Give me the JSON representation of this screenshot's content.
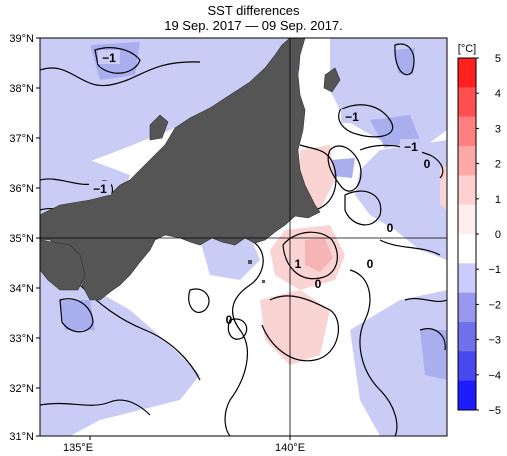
{
  "title": "SST differences",
  "subtitle": "19 Sep. 2017 — 09 Sep. 2017.",
  "colorbar": {
    "unit": "[°C]",
    "ticks": [
      "5",
      "4",
      "3",
      "2",
      "1",
      "0",
      "−1",
      "−2",
      "−3",
      "−4",
      "−5"
    ],
    "colors": [
      "#ff2020",
      "#ff5050",
      "#ff8080",
      "#ffa8a8",
      "#ffd0d0",
      "#ffeeee",
      "#ffffff",
      "#ccccff",
      "#9898f0",
      "#7070e8",
      "#4848f0",
      "#1c1cff"
    ]
  },
  "axes": {
    "lat_labels": [
      "39°N",
      "38°N",
      "37°N",
      "36°N",
      "35°N",
      "34°N",
      "33°N",
      "32°N",
      "31°N"
    ],
    "lon_labels": [
      "135°E",
      "140°E"
    ]
  },
  "contour_labels": [
    {
      "text": "−1"
    },
    {
      "text": "−1"
    },
    {
      "text": "−1"
    },
    {
      "text": "−1"
    },
    {
      "text": "0"
    },
    {
      "text": "0"
    },
    {
      "text": "1"
    },
    {
      "text": "0"
    },
    {
      "text": "0"
    },
    {
      "text": "0"
    }
  ],
  "colors": {
    "land": "#555555",
    "cool": "#c8ccf6",
    "warm": "#fbd4d4",
    "neutral": "#ffffff"
  }
}
